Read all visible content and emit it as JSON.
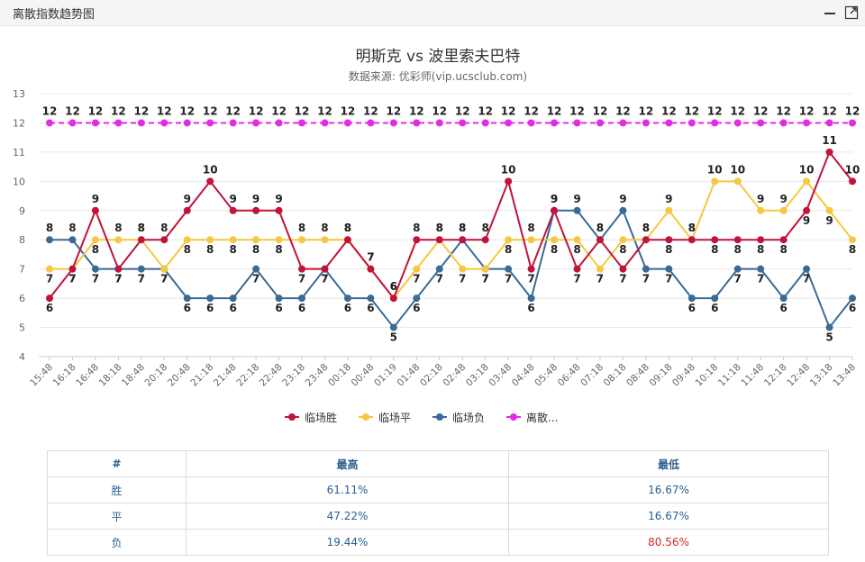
{
  "panel": {
    "title": "离散指数趋势图",
    "icons": [
      "minimize-icon",
      "expand-icon"
    ]
  },
  "chart_data": {
    "type": "line",
    "title": "明斯克 vs 波里索夫巴特",
    "subtitle": "数据来源: 优彩师(vip.ucsclub.com)",
    "xlabel": "",
    "ylabel": "",
    "ylim": [
      4,
      13
    ],
    "yticks": [
      4,
      5,
      6,
      7,
      8,
      9,
      10,
      11,
      12,
      13
    ],
    "grid": "horizontal",
    "legend_position": "bottom",
    "categories": [
      "15:48",
      "16:18",
      "16:48",
      "18:18",
      "18:48",
      "20:18",
      "20:48",
      "21:18",
      "21:48",
      "22:18",
      "22:48",
      "23:18",
      "23:48",
      "00:18",
      "00:48",
      "01:19",
      "01:48",
      "02:18",
      "02:48",
      "03:18",
      "03:48",
      "04:48",
      "05:48",
      "06:48",
      "07:18",
      "08:18",
      "08:48",
      "09:18",
      "09:48",
      "10:18",
      "11:18",
      "11:48",
      "12:18",
      "12:48",
      "13:18",
      "13:48"
    ],
    "tick_labels": [
      "15:48",
      "16:18",
      "16:48",
      "18:18",
      "18:48",
      "20:18",
      "20:48",
      "21:18",
      "21:48",
      "22:18",
      "22:48",
      "23:18",
      "23:48",
      "00:18",
      "00:48",
      "01:19",
      "01:48",
      "02:18",
      "02:48",
      "03:18",
      "03:48",
      "04:48",
      "05:48",
      "06:48",
      "07:18",
      "08:18",
      "08:48",
      "09:18",
      "09:48",
      "10:18",
      "11:18",
      "11:48",
      "12:18",
      "12:48",
      "13:18",
      "13:48"
    ],
    "series": [
      {
        "name": "临场胜",
        "color": "#c0143c",
        "dashed": false,
        "values": [
          6,
          7,
          9,
          7,
          8,
          8,
          9,
          10,
          9,
          9,
          9,
          7,
          7,
          8,
          7,
          6,
          8,
          8,
          8,
          8,
          10,
          7,
          9,
          7,
          8,
          7,
          8,
          8,
          8,
          8,
          8,
          8,
          8,
          9,
          11,
          10
        ]
      },
      {
        "name": "临场平",
        "color": "#f5c842",
        "dashed": false,
        "values": [
          7,
          7,
          8,
          8,
          8,
          7,
          8,
          8,
          8,
          8,
          8,
          8,
          8,
          8,
          7,
          6,
          7,
          8,
          7,
          7,
          8,
          8,
          8,
          8,
          7,
          8,
          8,
          9,
          8,
          10,
          10,
          9,
          9,
          10,
          9,
          8
        ]
      },
      {
        "name": "临场负",
        "color": "#3a6a96",
        "dashed": false,
        "values": [
          8,
          8,
          7,
          7,
          7,
          7,
          6,
          6,
          6,
          7,
          6,
          6,
          7,
          6,
          6,
          5,
          6,
          7,
          8,
          7,
          7,
          6,
          9,
          9,
          8,
          9,
          7,
          7,
          6,
          6,
          7,
          7,
          6,
          7,
          5,
          6
        ]
      },
      {
        "name": "离散...",
        "color": "#e42be4",
        "dashed": true,
        "values": [
          12,
          12,
          12,
          12,
          12,
          12,
          12,
          12,
          12,
          12,
          12,
          12,
          12,
          12,
          12,
          12,
          12,
          12,
          12,
          12,
          12,
          12,
          12,
          12,
          12,
          12,
          12,
          12,
          12,
          12,
          12,
          12,
          12,
          12,
          12,
          12
        ]
      }
    ]
  },
  "legend": {
    "items": [
      {
        "label": "临场胜",
        "color": "#c0143c"
      },
      {
        "label": "临场平",
        "color": "#f5c842"
      },
      {
        "label": "临场负",
        "color": "#3a6a96"
      },
      {
        "label": "离散...",
        "color": "#e42be4"
      }
    ]
  },
  "table": {
    "headers": [
      "#",
      "最高",
      "最低"
    ],
    "rows": [
      {
        "label": "胜",
        "high": "61.11%",
        "low": "16.67%",
        "low_color": "#2b5f8f"
      },
      {
        "label": "平",
        "high": "47.22%",
        "low": "16.67%",
        "low_color": "#2b5f8f"
      },
      {
        "label": "负",
        "high": "19.44%",
        "low": "80.56%",
        "low_color": "#d0292a"
      }
    ]
  }
}
